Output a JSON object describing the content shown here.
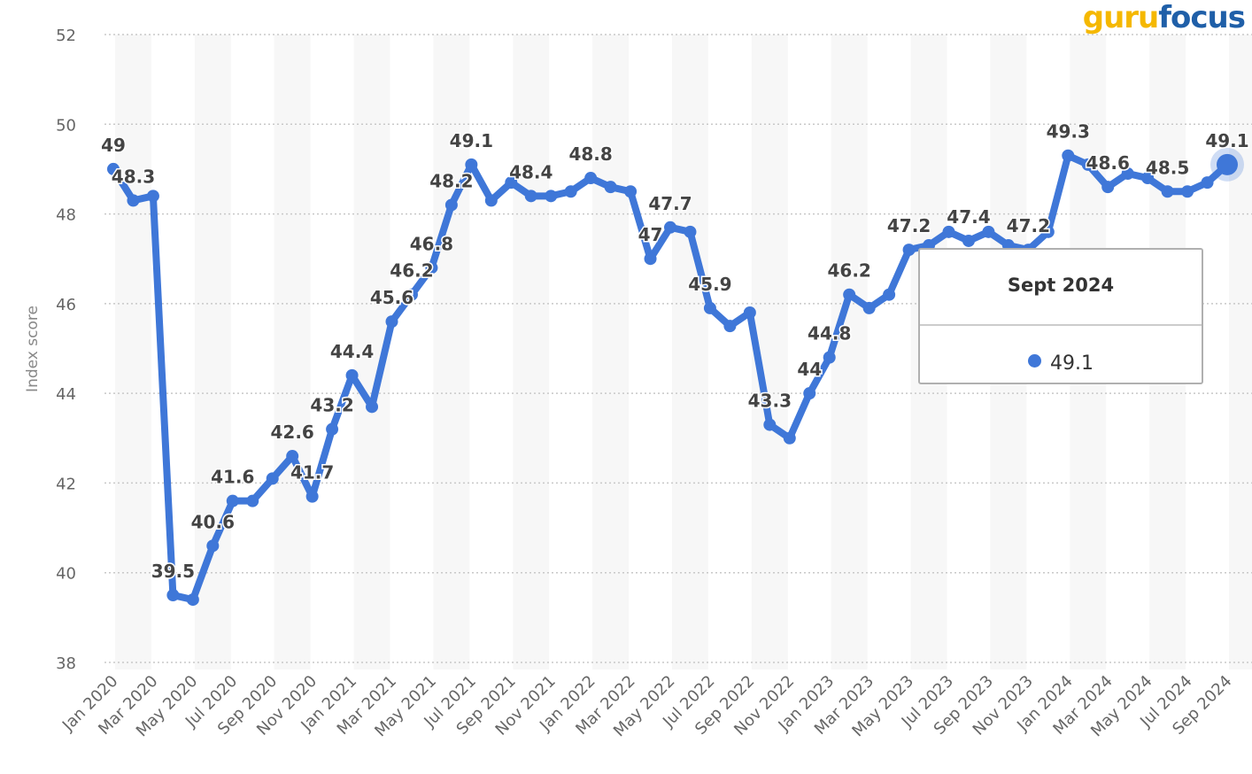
{
  "chart_data": {
    "type": "line",
    "title": "",
    "xlabel": "",
    "ylabel": "Index score",
    "ylim": [
      38,
      52
    ],
    "yticks": [
      38,
      40,
      42,
      44,
      46,
      48,
      50,
      52
    ],
    "grid": true,
    "x": [
      "Jan 2020",
      "Feb 2020",
      "Mar 2020",
      "Apr 2020",
      "May 2020",
      "Jun 2020",
      "Jul 2020",
      "Aug 2020",
      "Sep 2020",
      "Oct 2020",
      "Nov 2020",
      "Dec 2020",
      "Jan 2021",
      "Feb 2021",
      "Mar 2021",
      "Apr 2021",
      "May 2021",
      "Jun 2021",
      "Jul 2021",
      "Aug 2021",
      "Sep 2021",
      "Oct 2021",
      "Nov 2021",
      "Dec 2021",
      "Jan 2022",
      "Feb 2022",
      "Mar 2022",
      "Apr 2022",
      "May 2022",
      "Jun 2022",
      "Jul 2022",
      "Aug 2022",
      "Sep 2022",
      "Oct 2022",
      "Nov 2022",
      "Dec 2022",
      "Jan 2023",
      "Feb 2023",
      "Mar 2023",
      "Apr 2023",
      "May 2023",
      "Jun 2023",
      "Jul 2023",
      "Aug 2023",
      "Sep 2023",
      "Oct 2023",
      "Nov 2023",
      "Dec 2023",
      "Jan 2024",
      "Feb 2024",
      "Mar 2024",
      "Apr 2024",
      "May 2024",
      "Jun 2024",
      "Jul 2024",
      "Aug 2024",
      "Sep 2024"
    ],
    "xtick_labels": [
      "Jan 2020",
      "Mar 2020",
      "May 2020",
      "Jul 2020",
      "Sep 2020",
      "Nov 2020",
      "Jan 2021",
      "Mar 2021",
      "May 2021",
      "Jul 2021",
      "Sep 2021",
      "Nov 2021",
      "Jan 2022",
      "Mar 2022",
      "May 2022",
      "Jul 2022",
      "Sep 2022",
      "Nov 2022",
      "Jan 2023",
      "Mar 2023",
      "May 2023",
      "Jul 2023",
      "Sep 2023",
      "Nov 2023",
      "Jan 2024",
      "Mar 2024",
      "May 2024",
      "Jul 2024",
      "Sep 2024"
    ],
    "series": [
      {
        "name": "Index score",
        "color": "#3f77d8",
        "values": [
          49,
          48.3,
          48.4,
          39.5,
          39.4,
          40.6,
          41.6,
          41.6,
          42.1,
          42.6,
          41.7,
          43.2,
          44.4,
          43.7,
          45.6,
          46.2,
          46.8,
          48.2,
          49.1,
          48.3,
          48.7,
          48.4,
          48.4,
          48.5,
          48.8,
          48.6,
          48.5,
          47,
          47.7,
          47.6,
          45.9,
          45.5,
          45.8,
          43.3,
          43,
          44,
          44.8,
          46.2,
          45.9,
          46.2,
          47.2,
          47.3,
          47.6,
          47.4,
          47.6,
          47.3,
          47.2,
          47.6,
          49.3,
          49.1,
          48.6,
          48.9,
          48.8,
          48.5,
          48.5,
          48.7,
          49.1
        ]
      }
    ],
    "data_labels": [
      {
        "i": 0,
        "text": "49"
      },
      {
        "i": 1,
        "text": "48.3"
      },
      {
        "i": 3,
        "text": "39.5"
      },
      {
        "i": 5,
        "text": "40.6"
      },
      {
        "i": 6,
        "text": "41.6"
      },
      {
        "i": 9,
        "text": "42.6"
      },
      {
        "i": 10,
        "text": "41.7"
      },
      {
        "i": 11,
        "text": "43.2"
      },
      {
        "i": 12,
        "text": "44.4"
      },
      {
        "i": 14,
        "text": "45.6"
      },
      {
        "i": 15,
        "text": "46.2"
      },
      {
        "i": 16,
        "text": "46.8"
      },
      {
        "i": 17,
        "text": "48.2"
      },
      {
        "i": 18,
        "text": "49.1"
      },
      {
        "i": 21,
        "text": "48.4"
      },
      {
        "i": 24,
        "text": "48.8"
      },
      {
        "i": 27,
        "text": "47"
      },
      {
        "i": 28,
        "text": "47.7"
      },
      {
        "i": 30,
        "text": "45.9"
      },
      {
        "i": 33,
        "text": "43.3"
      },
      {
        "i": 35,
        "text": "44"
      },
      {
        "i": 36,
        "text": "44.8"
      },
      {
        "i": 37,
        "text": "46.2"
      },
      {
        "i": 40,
        "text": "47.2"
      },
      {
        "i": 43,
        "text": "47.4"
      },
      {
        "i": 46,
        "text": "47.2"
      },
      {
        "i": 48,
        "text": "49.3"
      },
      {
        "i": 50,
        "text": "48.6"
      },
      {
        "i": 53,
        "text": "48.5"
      },
      {
        "i": 56,
        "text": "49.1"
      }
    ],
    "highlighted_index": 56
  },
  "tooltip": {
    "title": "Sept 2024",
    "value": "49.1"
  },
  "watermark": {
    "part1": "guru",
    "part2": "focus"
  }
}
